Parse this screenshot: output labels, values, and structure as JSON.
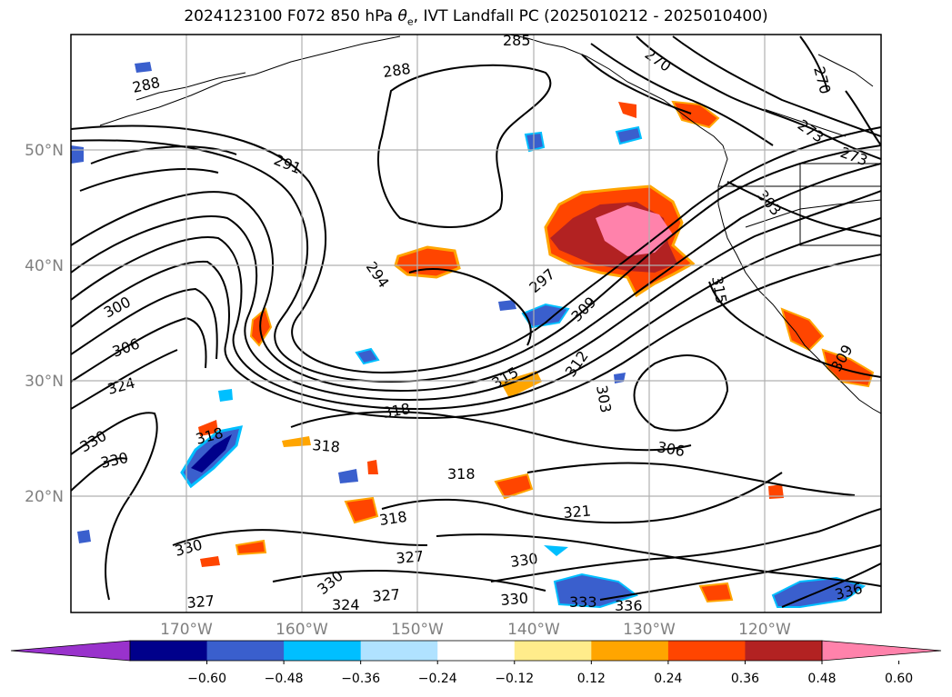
{
  "title": "2024123100 F072 850 hPa θe, IVT Landfall PC (2025010212 - 2025010400)",
  "title_parts": {
    "prefix": "2024123100 F072 850 hPa ",
    "theta": "θ",
    "sub": "e",
    "suffix": ", IVT Landfall PC (2025010212 - 2025010400)"
  },
  "map": {
    "lat_labels": [
      "50°N",
      "40°N",
      "30°N",
      "20°N"
    ],
    "lon_labels": [
      "170°W",
      "160°W",
      "150°W",
      "140°W",
      "130°W",
      "120°W"
    ],
    "contour_labels": [
      "285",
      "288",
      "288",
      "291",
      "294",
      "297",
      "300",
      "306",
      "303",
      "306",
      "309",
      "312",
      "315",
      "315",
      "318",
      "318",
      "318",
      "318",
      "321",
      "324",
      "324",
      "327",
      "327",
      "327",
      "330",
      "330",
      "330",
      "330",
      "330",
      "333",
      "336",
      "336",
      "270",
      "270",
      "273",
      "273",
      "303",
      "309",
      "318",
      "330"
    ]
  },
  "colorbar": {
    "ticks": [
      "−0.60",
      "−0.48",
      "−0.36",
      "−0.24",
      "−0.12",
      "0.12",
      "0.24",
      "0.36",
      "0.48",
      "0.60"
    ],
    "colors": [
      "#9932cc",
      "#00008b",
      "#3a5fcd",
      "#00bfff",
      "#b0e2ff",
      "#ffffff",
      "#ffec8b",
      "#ffa500",
      "#ff4500",
      "#b22222",
      "#ff82ab"
    ]
  }
}
